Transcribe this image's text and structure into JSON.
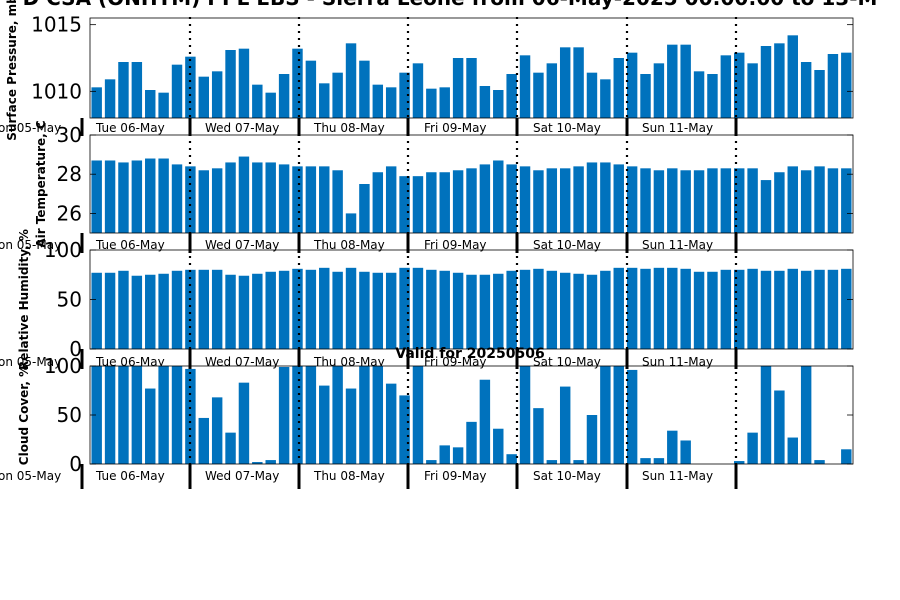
{
  "title": "D CSA (ONHTM) PPL EBS - Sierra Leone from 06-May-2025 00:00:00 to 13-M",
  "valid_label": "Valid for 20250506",
  "colors": {
    "bar": "#0072bd",
    "axis": "#000000",
    "separator": "#000000"
  },
  "day_labels": [
    "on 05-May",
    "Tue 06-May",
    "Wed 07-May",
    "Thu 08-May",
    "Fri 09-May",
    "Sat 10-May",
    "Sun 11-May"
  ],
  "chart_data": [
    {
      "type": "bar",
      "ylabel": "Surface Pressure, mb",
      "ylim": [
        1008,
        1015.5
      ],
      "yticks": [
        1010,
        1015
      ],
      "y_tick_labels": [
        "1010",
        "1015"
      ],
      "values": [
        1010.3,
        1010.9,
        1012.2,
        1012.2,
        1010.1,
        1009.9,
        1012.0,
        1012.6,
        1011.1,
        1011.5,
        1013.1,
        1013.2,
        1010.5,
        1009.9,
        1011.3,
        1013.2,
        1012.3,
        1010.6,
        1011.4,
        1013.6,
        1012.3,
        1010.5,
        1010.3,
        1011.4,
        1012.1,
        1010.2,
        1010.3,
        1012.5,
        1012.5,
        1010.4,
        1010.1,
        1011.3,
        1012.7,
        1011.4,
        1012.1,
        1013.3,
        1013.3,
        1011.4,
        1010.9,
        1012.5,
        1012.9,
        1011.3,
        1012.1,
        1013.5,
        1013.5,
        1011.5,
        1011.3,
        1012.7,
        1012.9,
        1012.1,
        1013.4,
        1013.6,
        1014.2,
        1012.2,
        1011.6,
        1012.8,
        1012.9
      ]
    },
    {
      "type": "bar",
      "ylabel": "Air Temperature, C",
      "ylim": [
        25,
        30
      ],
      "yticks": [
        26,
        28,
        30
      ],
      "y_tick_labels": [
        "26",
        "28",
        "30"
      ],
      "values": [
        28.7,
        28.7,
        28.6,
        28.7,
        28.8,
        28.8,
        28.5,
        28.4,
        28.2,
        28.3,
        28.6,
        28.9,
        28.6,
        28.6,
        28.5,
        28.4,
        28.4,
        28.4,
        28.2,
        26.0,
        27.5,
        28.1,
        28.4,
        27.9,
        27.9,
        28.1,
        28.1,
        28.2,
        28.3,
        28.5,
        28.7,
        28.5,
        28.4,
        28.2,
        28.3,
        28.3,
        28.4,
        28.6,
        28.6,
        28.5,
        28.4,
        28.3,
        28.2,
        28.3,
        28.2,
        28.2,
        28.3,
        28.3,
        28.3,
        28.3,
        27.7,
        28.1,
        28.4,
        28.2,
        28.4,
        28.3,
        28.3
      ]
    },
    {
      "type": "bar",
      "ylabel": "Relative Humidity, %",
      "ylim": [
        0,
        100
      ],
      "yticks": [
        0,
        50,
        100
      ],
      "y_tick_labels": [
        "0",
        "50",
        "100"
      ],
      "values": [
        77,
        77,
        79,
        74,
        75,
        76,
        79,
        80,
        80,
        80,
        75,
        74,
        76,
        78,
        79,
        81,
        80,
        82,
        78,
        82,
        78,
        77,
        77,
        82,
        82,
        80,
        79,
        77,
        75,
        75,
        76,
        79,
        80,
        81,
        79,
        77,
        76,
        75,
        79,
        82,
        82,
        81,
        82,
        82,
        81,
        78,
        78,
        80,
        80,
        81,
        79,
        79,
        81,
        79,
        80,
        80,
        81
      ]
    },
    {
      "type": "bar",
      "ylabel": "Cloud Cover, %",
      "ylim": [
        0,
        100
      ],
      "yticks": [
        0,
        50,
        100
      ],
      "y_tick_labels": [
        "0",
        "50",
        "100"
      ],
      "values": [
        100,
        100,
        100,
        100,
        77,
        100,
        100,
        97,
        47,
        68,
        32,
        83,
        2,
        4,
        99,
        100,
        100,
        80,
        100,
        77,
        100,
        100,
        82,
        70,
        100,
        4,
        19,
        17,
        43,
        86,
        36,
        10,
        100,
        57,
        4,
        79,
        4,
        50,
        100,
        100,
        96,
        6,
        6,
        34,
        24,
        0,
        0,
        0,
        3,
        32,
        100,
        75,
        27,
        100,
        4,
        0,
        15
      ]
    }
  ]
}
